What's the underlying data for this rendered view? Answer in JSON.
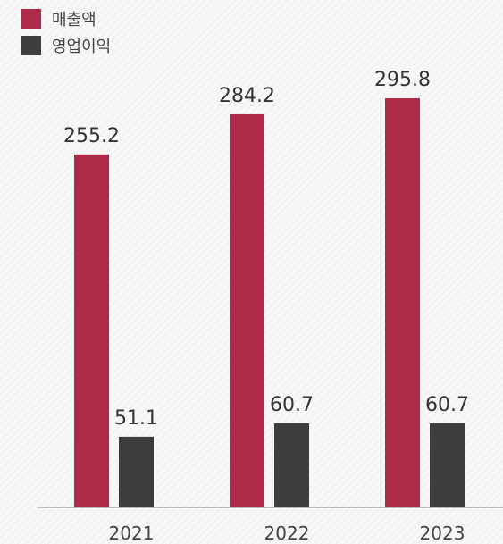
{
  "chart_data": {
    "type": "bar",
    "title": "",
    "xlabel": "",
    "ylabel": "",
    "categories": [
      "2021",
      "2022",
      "2023"
    ],
    "series": [
      {
        "name": "매출액",
        "values": [
          255.2,
          284.2,
          295.8
        ],
        "color": "#ad2a48"
      },
      {
        "name": "영업이익",
        "values": [
          51.1,
          60.7,
          60.7
        ],
        "color": "#3d3d3d"
      }
    ],
    "value_labels": [
      [
        "255.2",
        "284.2",
        "295.8"
      ],
      [
        "51.1",
        "60.7",
        "60.7"
      ]
    ],
    "ylim": [
      0,
      300
    ],
    "grid": false,
    "legend_position": "top-left"
  }
}
